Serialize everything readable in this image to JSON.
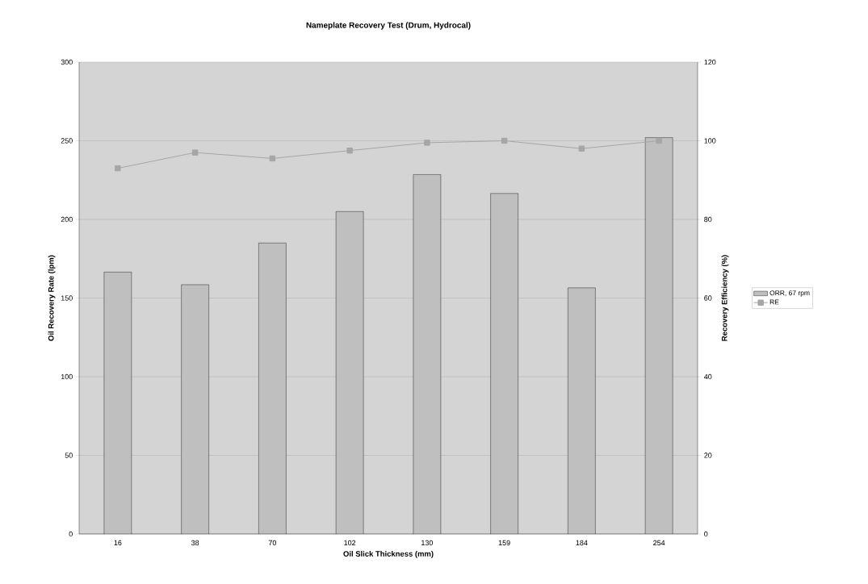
{
  "chart_data": {
    "type": "bar",
    "title": "Nameplate Recovery Test (Drum, Hydrocal)",
    "xlabel": "Oil Slick Thickness (mm)",
    "ylabel": "Oil Recovery Rate (lpm)",
    "y2label": "Recovery Efficiency (%)",
    "categories": [
      "16",
      "38",
      "70",
      "102",
      "130",
      "159",
      "184",
      "254"
    ],
    "series": [
      {
        "name": "ORR, 67 rpm",
        "color": "#bfbfbf",
        "values": [
          166.5,
          158.5,
          185,
          205,
          228.5,
          216.5,
          156.5,
          252
        ]
      },
      {
        "name": "RE",
        "type": "line",
        "axis": "y2",
        "color": "#a6a6a6",
        "marker": "square",
        "values": [
          93,
          97,
          95.5,
          97.5,
          99.5,
          100,
          98,
          100
        ]
      }
    ],
    "ylim": [
      0,
      300
    ],
    "yticks": [
      0,
      50,
      100,
      150,
      200,
      250,
      300
    ],
    "y2lim": [
      0,
      120
    ],
    "y2ticks": [
      0,
      20,
      40,
      60,
      80,
      100,
      120
    ],
    "grid": "y",
    "legend": "right"
  }
}
